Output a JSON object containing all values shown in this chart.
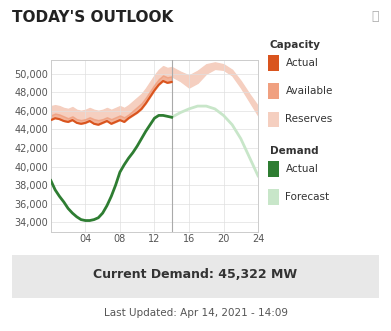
{
  "title": "TODAY'S OUTLOOK",
  "info_icon": "ⓘ",
  "current_demand_text": "Current Demand: 45,322 MW",
  "last_updated_text": "Last Updated: Apr 14, 2021 - 14:09",
  "x_ticks": [
    4,
    8,
    12,
    16,
    20,
    24
  ],
  "x_labels": [
    "04",
    "08",
    "12",
    "16",
    "20",
    "24"
  ],
  "xlim": [
    0,
    24
  ],
  "ylim": [
    33000,
    51500
  ],
  "y_ticks": [
    34000,
    36000,
    38000,
    40000,
    42000,
    44000,
    46000,
    48000,
    50000
  ],
  "y_labels": [
    "34,000",
    "36,000",
    "38,000",
    "40,000",
    "42,000",
    "44,000",
    "46,000",
    "48,000",
    "50,000"
  ],
  "capacity_actual_color": "#d9541e",
  "capacity_available_color": "#f0a080",
  "capacity_reserves_color": "#f5cfc0",
  "demand_actual_color": "#2e7d32",
  "demand_forecast_color": "#c8e6c9",
  "vertical_line_x": 14,
  "capacity_actual_x": [
    0,
    0.5,
    1,
    1.5,
    2,
    2.5,
    3,
    3.5,
    4,
    4.5,
    5,
    5.5,
    6,
    6.5,
    7,
    7.5,
    8,
    8.5,
    9,
    9.5,
    10,
    10.5,
    11,
    11.5,
    12,
    12.5,
    13,
    13.5,
    14
  ],
  "capacity_actual_y": [
    45000,
    45200,
    45100,
    44900,
    44800,
    45000,
    44700,
    44600,
    44700,
    44900,
    44600,
    44500,
    44700,
    44900,
    44600,
    44800,
    45000,
    44800,
    45200,
    45500,
    45800,
    46200,
    46800,
    47500,
    48200,
    48800,
    49200,
    49000,
    49100
  ],
  "capacity_available_x": [
    0,
    0.5,
    1,
    1.5,
    2,
    2.5,
    3,
    3.5,
    4,
    4.5,
    5,
    5.5,
    6,
    6.5,
    7,
    7.5,
    8,
    8.5,
    9,
    9.5,
    10,
    10.5,
    11,
    11.5,
    12,
    12.5,
    13,
    13.5,
    14,
    15,
    16,
    17,
    18,
    19,
    20,
    21,
    22,
    23,
    24
  ],
  "capacity_available_y": [
    45500,
    45700,
    45600,
    45400,
    45200,
    45400,
    45100,
    45000,
    45100,
    45300,
    45100,
    45000,
    45100,
    45300,
    45100,
    45300,
    45500,
    45300,
    45600,
    46000,
    46400,
    46800,
    47400,
    48100,
    48800,
    49400,
    49800,
    49600,
    49700,
    49200,
    48500,
    49000,
    50000,
    50500,
    50400,
    49800,
    48500,
    47000,
    45500
  ],
  "capacity_upper_x": [
    0,
    0.5,
    1,
    1.5,
    2,
    2.5,
    3,
    3.5,
    4,
    4.5,
    5,
    5.5,
    6,
    6.5,
    7,
    7.5,
    8,
    8.5,
    9,
    9.5,
    10,
    10.5,
    11,
    11.5,
    12,
    12.5,
    13,
    13.5,
    14,
    15,
    16,
    17,
    18,
    19,
    20,
    21,
    22,
    23,
    24
  ],
  "capacity_upper_y": [
    46500,
    46600,
    46500,
    46300,
    46200,
    46400,
    46100,
    46000,
    46100,
    46300,
    46100,
    46000,
    46100,
    46300,
    46100,
    46300,
    46500,
    46300,
    46600,
    47000,
    47400,
    47800,
    48400,
    49100,
    49800,
    50400,
    50800,
    50600,
    50700,
    50200,
    49800,
    50300,
    51000,
    51200,
    51000,
    50400,
    49200,
    47800,
    46500
  ],
  "demand_actual_x": [
    0,
    0.5,
    1,
    1.5,
    2,
    2.5,
    3,
    3.5,
    4,
    4.5,
    5,
    5.5,
    6,
    6.5,
    7,
    7.5,
    8,
    8.5,
    9,
    9.5,
    10,
    10.5,
    11,
    11.5,
    12,
    12.5,
    13,
    13.5,
    14
  ],
  "demand_actual_y": [
    38500,
    37500,
    36800,
    36200,
    35500,
    35000,
    34600,
    34300,
    34200,
    34200,
    34300,
    34500,
    35000,
    35800,
    36800,
    38000,
    39400,
    40200,
    40900,
    41500,
    42200,
    43000,
    43800,
    44500,
    45200,
    45500,
    45500,
    45400,
    45300
  ],
  "demand_forecast_x": [
    14,
    15,
    16,
    17,
    18,
    19,
    20,
    21,
    22,
    23,
    24
  ],
  "demand_forecast_y": [
    45300,
    45800,
    46200,
    46500,
    46500,
    46200,
    45500,
    44500,
    43000,
    41000,
    39000
  ],
  "bg_color": "#ffffff",
  "plot_bg_color": "#ffffff",
  "grid_color": "#e0e0e0",
  "bottom_panel_color": "#e8e8e8"
}
